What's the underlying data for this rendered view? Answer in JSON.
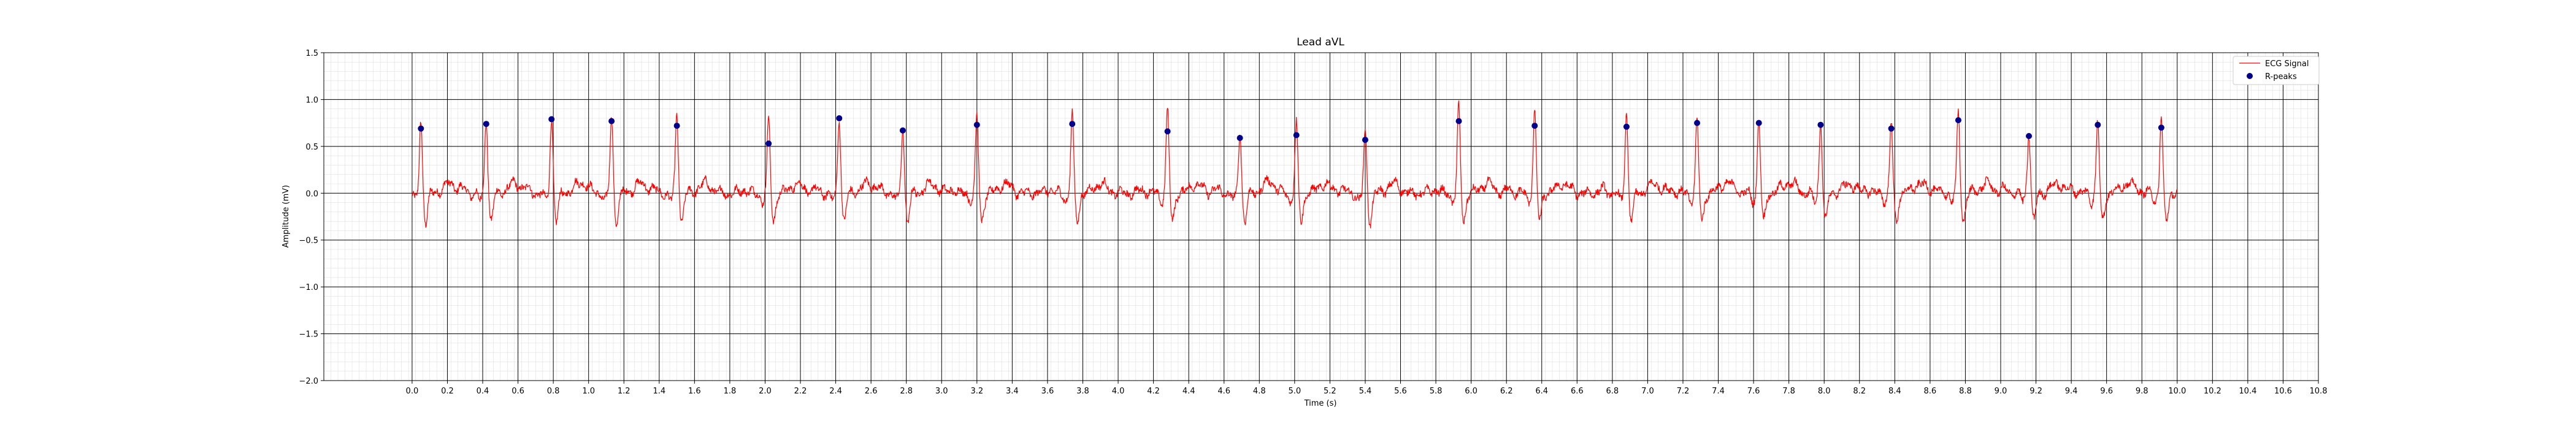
{
  "chart_data": {
    "type": "line",
    "title": "Lead aVL",
    "xlabel": "Time (s)",
    "ylabel": "Amplitude (mV)",
    "xlim": [
      -0.5,
      10.8
    ],
    "ylim": [
      -2.0,
      1.5
    ],
    "x_ticks": [
      0.0,
      0.2,
      0.4,
      0.6,
      0.8,
      1.0,
      1.2,
      1.4,
      1.6,
      1.8,
      2.0,
      2.2,
      2.4,
      2.6,
      2.8,
      3.0,
      3.2,
      3.4,
      3.6,
      3.8,
      4.0,
      4.2,
      4.4,
      4.6,
      4.8,
      5.0,
      5.2,
      5.4,
      5.6,
      5.8,
      6.0,
      6.2,
      6.4,
      6.6,
      6.8,
      7.0,
      7.2,
      7.4,
      7.6,
      7.8,
      8.0,
      8.2,
      8.4,
      8.6,
      8.8,
      9.0,
      9.2,
      9.4,
      9.6,
      9.8,
      10.0,
      10.2,
      10.4,
      10.6,
      10.8
    ],
    "x_tick_labels": [
      "0.0",
      "0.2",
      "0.4",
      "0.6",
      "0.8",
      "1.0",
      "1.2",
      "1.4",
      "1.6",
      "1.8",
      "2.0",
      "2.2",
      "2.4",
      "2.6",
      "2.8",
      "3.0",
      "3.2",
      "3.4",
      "3.6",
      "3.8",
      "4.0",
      "4.2",
      "4.4",
      "4.6",
      "4.8",
      "5.0",
      "5.2",
      "5.4",
      "5.6",
      "5.8",
      "6.0",
      "6.2",
      "6.4",
      "6.6",
      "6.8",
      "7.0",
      "7.2",
      "7.4",
      "7.6",
      "7.8",
      "8.0",
      "8.2",
      "8.4",
      "8.6",
      "8.8",
      "9.0",
      "9.2",
      "9.4",
      "9.6",
      "9.8",
      "10.0",
      "10.2",
      "10.4",
      "10.6",
      "10.8"
    ],
    "y_ticks": [
      -2.0,
      -1.5,
      -1.0,
      -0.5,
      0.0,
      0.5,
      1.0,
      1.5
    ],
    "y_tick_labels": [
      "−2.0",
      "−1.5",
      "−1.0",
      "−0.5",
      "0.0",
      "0.5",
      "1.0",
      "1.5"
    ],
    "grid": true,
    "legend_position": "top-right",
    "signal_range": [
      0.0,
      10.0
    ],
    "series": [
      {
        "name": "ECG Signal",
        "color": "#ff0000",
        "style": "line",
        "baseline_mV": 0.0,
        "r_peak_times": [
          0.05,
          0.42,
          0.79,
          1.13,
          1.5,
          2.02,
          2.42,
          2.78,
          3.2,
          3.74,
          4.28,
          4.69,
          5.01,
          5.4,
          5.93,
          6.36,
          6.88,
          7.28,
          7.63,
          7.98,
          8.38,
          8.76,
          9.16,
          9.55,
          9.91
        ],
        "r_peak_heights": [
          0.78,
          0.82,
          0.8,
          0.83,
          0.85,
          0.8,
          0.81,
          0.71,
          0.85,
          0.87,
          0.9,
          0.68,
          0.74,
          0.67,
          0.93,
          0.9,
          0.85,
          0.78,
          0.79,
          0.77,
          0.76,
          0.88,
          0.66,
          0.79,
          0.82
        ]
      },
      {
        "name": "R-peaks",
        "color": "#00008b",
        "style": "scatter",
        "x": [
          0.05,
          0.42,
          0.79,
          1.13,
          1.5,
          2.02,
          2.42,
          2.78,
          3.2,
          3.74,
          4.28,
          4.69,
          5.01,
          5.4,
          5.93,
          6.36,
          6.88,
          7.28,
          7.63,
          7.98,
          8.38,
          8.76,
          9.16,
          9.55,
          9.91
        ],
        "y": [
          0.69,
          0.74,
          0.79,
          0.77,
          0.72,
          0.53,
          0.8,
          0.67,
          0.73,
          0.74,
          0.66,
          0.59,
          0.62,
          0.57,
          0.77,
          0.72,
          0.71,
          0.75,
          0.75,
          0.73,
          0.69,
          0.78,
          0.61,
          0.73,
          0.7
        ]
      }
    ]
  }
}
